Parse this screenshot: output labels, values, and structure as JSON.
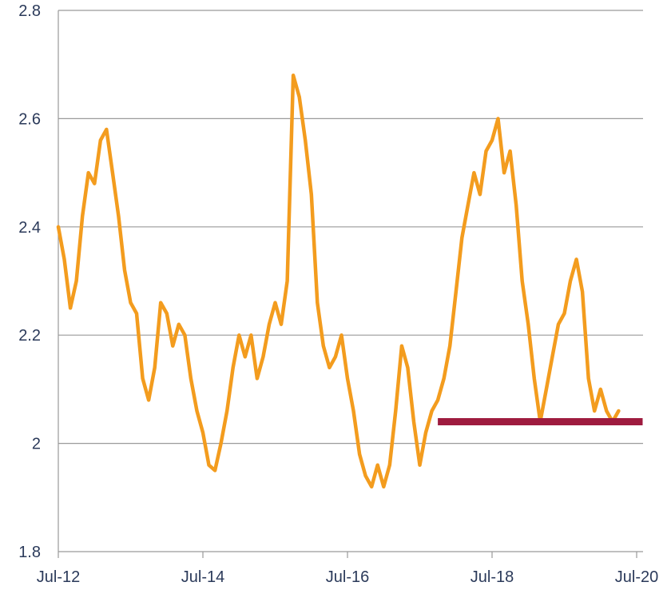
{
  "chart_data": {
    "type": "line",
    "title": "",
    "xlabel": "",
    "ylabel": "",
    "ylim": [
      1.8,
      2.8
    ],
    "xlim": [
      "2012-07",
      "2020-07"
    ],
    "grid": true,
    "y_ticks": [
      "1.8",
      "2",
      "2.2",
      "2.4",
      "2.6",
      "2.8"
    ],
    "x_ticks": [
      "Jul-12",
      "Jul-14",
      "Jul-16",
      "Jul-18",
      "Jul-20"
    ],
    "series": [
      {
        "color": "#f39c1e",
        "points": [
          [
            "2012-07",
            2.4
          ],
          [
            "2012-08",
            2.34
          ],
          [
            "2012-09",
            2.25
          ],
          [
            "2012-10",
            2.3
          ],
          [
            "2012-11",
            2.42
          ],
          [
            "2012-12",
            2.5
          ],
          [
            "2013-01",
            2.48
          ],
          [
            "2013-02",
            2.56
          ],
          [
            "2013-03",
            2.58
          ],
          [
            "2013-04",
            2.5
          ],
          [
            "2013-05",
            2.42
          ],
          [
            "2013-06",
            2.32
          ],
          [
            "2013-07",
            2.26
          ],
          [
            "2013-08",
            2.24
          ],
          [
            "2013-09",
            2.12
          ],
          [
            "2013-10",
            2.08
          ],
          [
            "2013-11",
            2.14
          ],
          [
            "2013-12",
            2.26
          ],
          [
            "2014-01",
            2.24
          ],
          [
            "2014-02",
            2.18
          ],
          [
            "2014-03",
            2.22
          ],
          [
            "2014-04",
            2.2
          ],
          [
            "2014-05",
            2.12
          ],
          [
            "2014-06",
            2.06
          ],
          [
            "2014-07",
            2.02
          ],
          [
            "2014-08",
            1.96
          ],
          [
            "2014-09",
            1.95
          ],
          [
            "2014-10",
            2.0
          ],
          [
            "2014-11",
            2.06
          ],
          [
            "2014-12",
            2.14
          ],
          [
            "2015-01",
            2.2
          ],
          [
            "2015-02",
            2.16
          ],
          [
            "2015-03",
            2.2
          ],
          [
            "2015-04",
            2.12
          ],
          [
            "2015-05",
            2.16
          ],
          [
            "2015-06",
            2.22
          ],
          [
            "2015-07",
            2.26
          ],
          [
            "2015-08",
            2.22
          ],
          [
            "2015-09",
            2.3
          ],
          [
            "2015-10",
            2.68
          ],
          [
            "2015-11",
            2.64
          ],
          [
            "2015-12",
            2.56
          ],
          [
            "2016-01",
            2.46
          ],
          [
            "2016-02",
            2.26
          ],
          [
            "2016-03",
            2.18
          ],
          [
            "2016-04",
            2.14
          ],
          [
            "2016-05",
            2.16
          ],
          [
            "2016-06",
            2.2
          ],
          [
            "2016-07",
            2.12
          ],
          [
            "2016-08",
            2.06
          ],
          [
            "2016-09",
            1.98
          ],
          [
            "2016-10",
            1.94
          ],
          [
            "2016-11",
            1.92
          ],
          [
            "2016-12",
            1.96
          ],
          [
            "2017-01",
            1.92
          ],
          [
            "2017-02",
            1.96
          ],
          [
            "2017-03",
            2.06
          ],
          [
            "2017-04",
            2.18
          ],
          [
            "2017-05",
            2.14
          ],
          [
            "2017-06",
            2.04
          ],
          [
            "2017-07",
            1.96
          ],
          [
            "2017-08",
            2.02
          ],
          [
            "2017-09",
            2.06
          ],
          [
            "2017-10",
            2.08
          ],
          [
            "2017-11",
            2.12
          ],
          [
            "2017-12",
            2.18
          ],
          [
            "2018-01",
            2.28
          ],
          [
            "2018-02",
            2.38
          ],
          [
            "2018-03",
            2.44
          ],
          [
            "2018-04",
            2.5
          ],
          [
            "2018-05",
            2.46
          ],
          [
            "2018-06",
            2.54
          ],
          [
            "2018-07",
            2.56
          ],
          [
            "2018-08",
            2.6
          ],
          [
            "2018-09",
            2.5
          ],
          [
            "2018-10",
            2.54
          ],
          [
            "2018-11",
            2.44
          ],
          [
            "2018-12",
            2.3
          ],
          [
            "2019-01",
            2.22
          ],
          [
            "2019-02",
            2.12
          ],
          [
            "2019-03",
            2.04
          ],
          [
            "2019-04",
            2.1
          ],
          [
            "2019-05",
            2.16
          ],
          [
            "2019-06",
            2.22
          ],
          [
            "2019-07",
            2.24
          ],
          [
            "2019-08",
            2.3
          ],
          [
            "2019-09",
            2.34
          ],
          [
            "2019-10",
            2.28
          ],
          [
            "2019-11",
            2.12
          ],
          [
            "2019-12",
            2.06
          ],
          [
            "2020-01",
            2.1
          ],
          [
            "2020-02",
            2.06
          ],
          [
            "2020-03",
            2.04
          ],
          [
            "2020-04",
            2.06
          ]
        ]
      },
      {
        "color": "#9e1b3f",
        "points": [
          [
            "2017-10",
            2.04
          ],
          [
            "2020-08",
            2.04
          ]
        ]
      }
    ]
  }
}
